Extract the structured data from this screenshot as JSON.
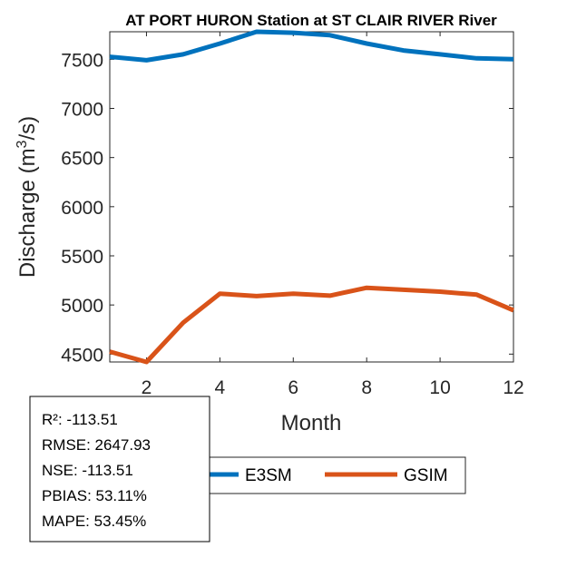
{
  "chart_data": {
    "type": "line",
    "title": "AT PORT HURON  Station at  ST CLAIR RIVER  River",
    "xlabel": "Month",
    "ylabel": "Discharge (m",
    "ylabel_sup": "3",
    "ylabel_tail": "/s)",
    "x": [
      1,
      2,
      3,
      4,
      5,
      6,
      7,
      8,
      9,
      10,
      11,
      12
    ],
    "xlim": [
      1,
      12
    ],
    "ylim": [
      4420,
      7780
    ],
    "xticks": [
      2,
      4,
      6,
      8,
      10,
      12
    ],
    "yticks": [
      4500,
      5000,
      5500,
      6000,
      6500,
      7000,
      7500
    ],
    "grid": false,
    "legend_placement": "bottom",
    "series": [
      {
        "name": "E3SM",
        "color": "#0072BD",
        "values": [
          7525,
          7490,
          7550,
          7660,
          7780,
          7770,
          7745,
          7660,
          7590,
          7550,
          7510,
          7500
        ]
      },
      {
        "name": "GSIM",
        "color": "#D95319",
        "values": [
          4525,
          4415,
          4820,
          5115,
          5090,
          5115,
          5095,
          5175,
          5155,
          5135,
          5105,
          4945
        ]
      }
    ],
    "stats": [
      "R²: -113.51",
      "RMSE: 2647.93",
      "NSE: -113.51",
      "PBIAS: 53.11%",
      "MAPE: 53.45%"
    ]
  }
}
